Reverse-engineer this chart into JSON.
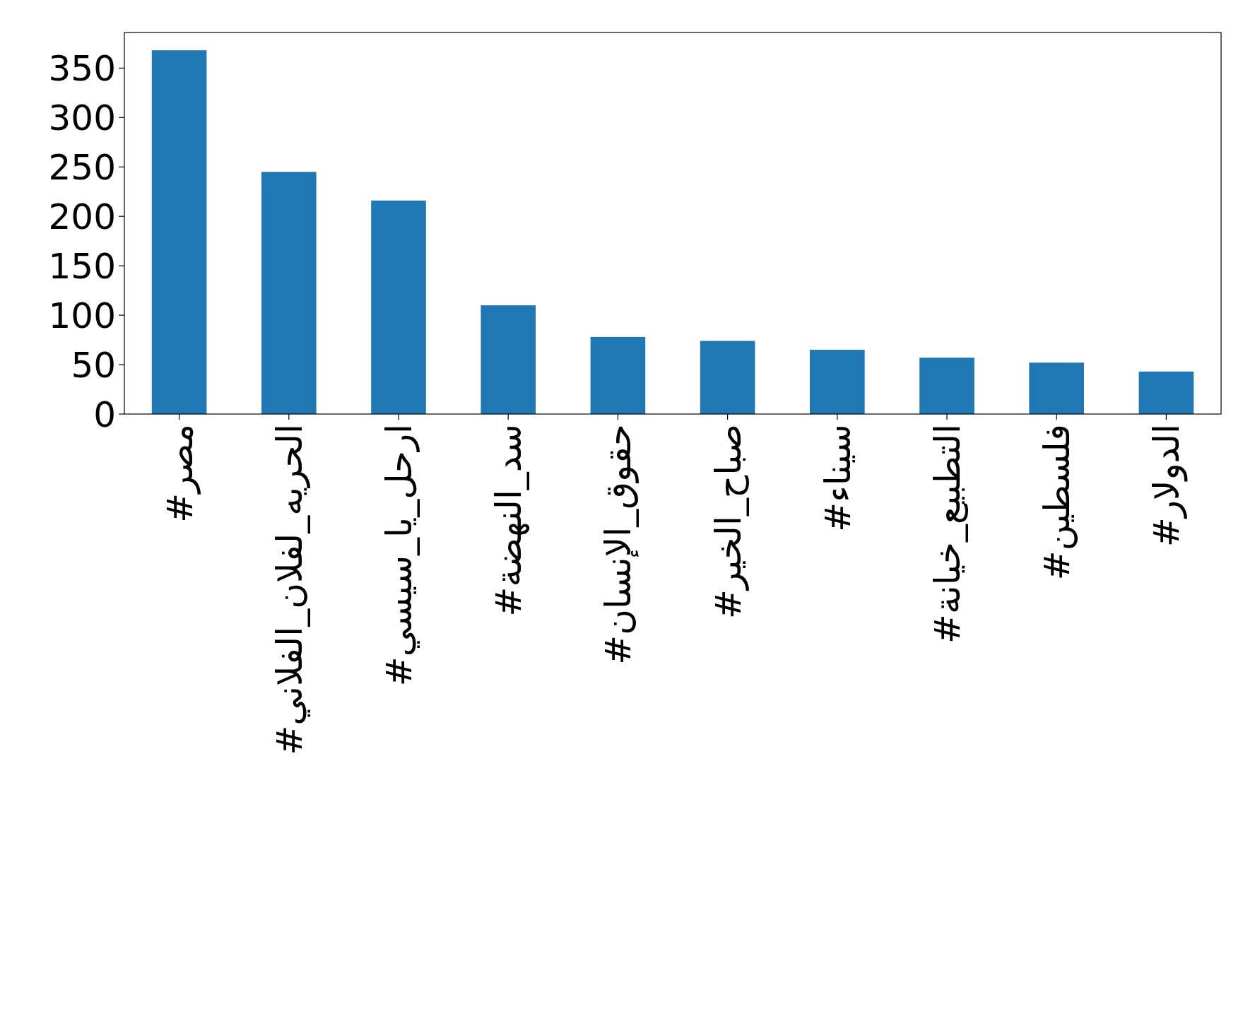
{
  "chart_data": {
    "type": "bar",
    "categories": [
      "#مصر",
      "#الحريه_لفلان_الفلاني",
      "#ارحل_يا_سيسي",
      "#سد_النهضة",
      "#حقوق_الإنسان",
      "#صباح_الخير",
      "#سيناء",
      "#التطبيع_خيانة",
      "#فلسطين",
      "#الدولار"
    ],
    "values": [
      368,
      245,
      216,
      110,
      78,
      74,
      65,
      57,
      52,
      43
    ],
    "color": "#1f77b4",
    "ylim": [
      0,
      386
    ],
    "yticks": [
      0,
      50,
      100,
      150,
      200,
      250,
      300,
      350
    ]
  }
}
